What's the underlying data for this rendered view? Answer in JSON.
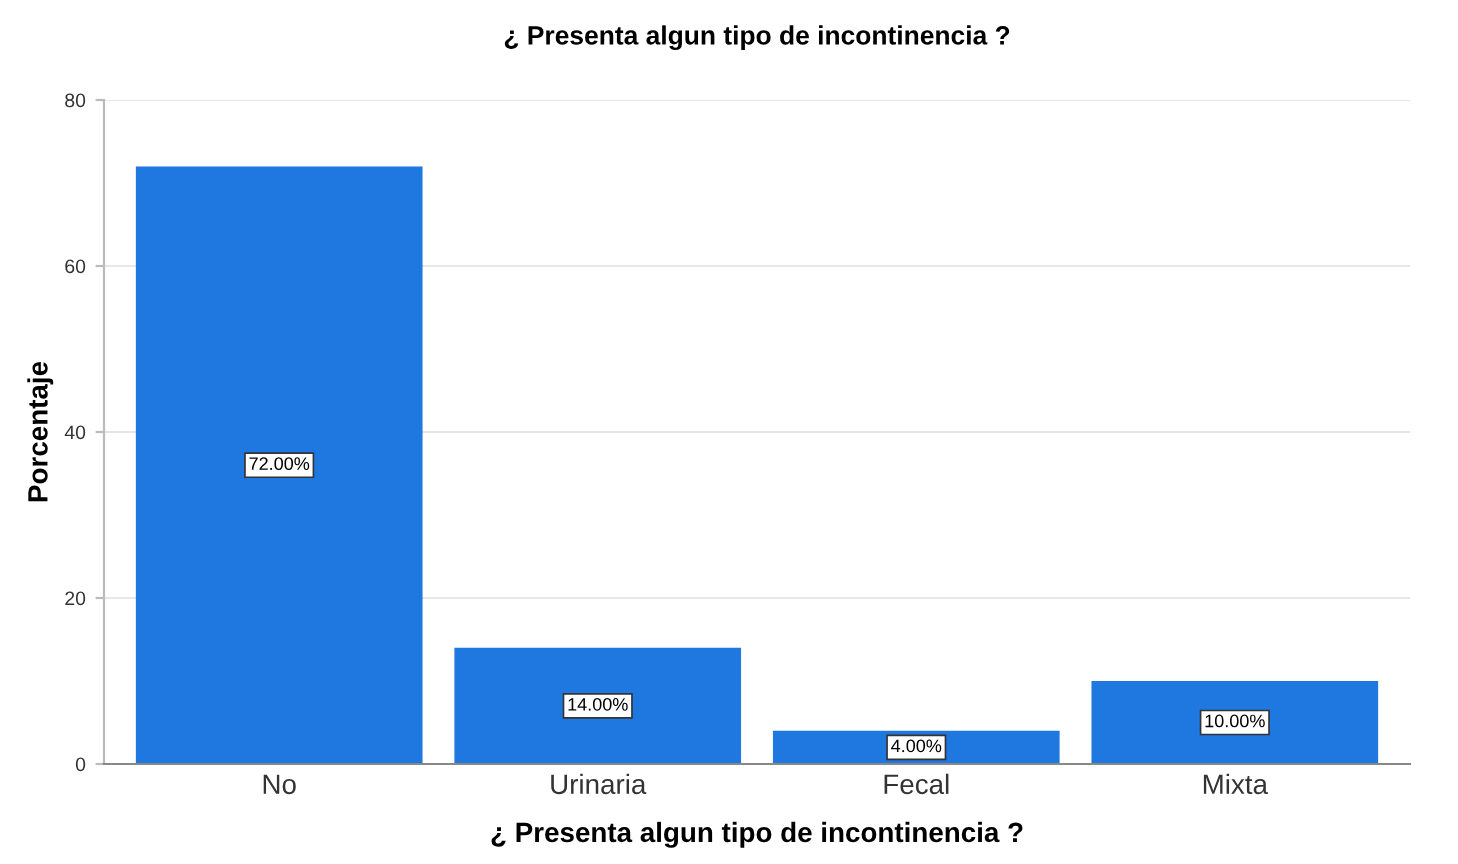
{
  "chart_data": {
    "type": "bar",
    "title": "¿ Presenta algun tipo de incontinencia ?",
    "xlabel": "¿ Presenta algun tipo de incontinencia ?",
    "ylabel": "Porcentaje",
    "categories": [
      "No",
      "Urinaria",
      "Fecal",
      "Mixta"
    ],
    "values": [
      72,
      14,
      4,
      10
    ],
    "value_labels": [
      "72.00%",
      "14.00%",
      "4.00%",
      "10.00%"
    ],
    "color": "#1f77e0",
    "ylim": [
      0,
      80
    ],
    "yticks": [
      0,
      20,
      40,
      60,
      80
    ],
    "grid": "y"
  }
}
